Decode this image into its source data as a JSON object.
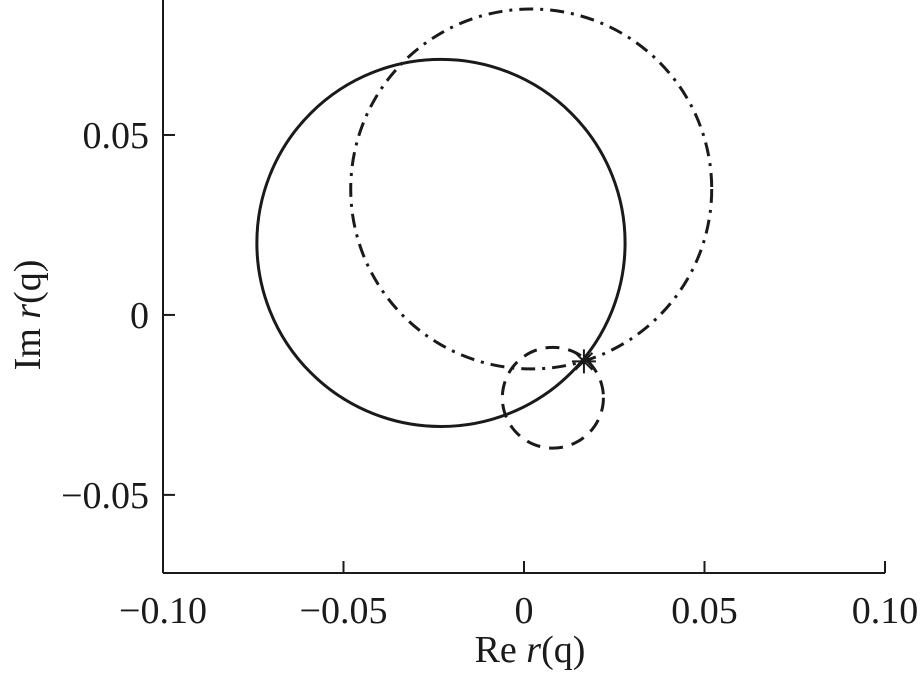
{
  "chart_data": {
    "type": "line",
    "title": "",
    "xlabel_prefix": "Re ",
    "xlabel_var": "r",
    "xlabel_arg": "(q)",
    "ylabel_prefix": "Im ",
    "ylabel_var": "r",
    "ylabel_arg": "(q)",
    "xlim": [
      -0.1,
      0.1
    ],
    "ylim": [
      -0.0717,
      0.0875
    ],
    "xticks": [
      {
        "value": -0.1,
        "label": "−0.10"
      },
      {
        "value": -0.05,
        "label": "−0.05"
      },
      {
        "value": 0,
        "label": "0"
      },
      {
        "value": 0.05,
        "label": "0.05"
      },
      {
        "value": 0.1,
        "label": "0.10"
      }
    ],
    "yticks": [
      {
        "value": 0.05,
        "label": "0.05"
      },
      {
        "value": 0,
        "label": "0"
      },
      {
        "value": -0.05,
        "label": "−0.05"
      }
    ],
    "grid": false,
    "series": [
      {
        "style": "solid",
        "shape": "circle",
        "center": [
          -0.023,
          0.02
        ],
        "radius": 0.051
      },
      {
        "style": "dash-dot",
        "shape": "circle",
        "center": [
          0.002,
          0.035
        ],
        "radius": 0.05
      },
      {
        "style": "dashed",
        "shape": "circle",
        "center": [
          0.008,
          -0.023
        ],
        "radius": 0.014
      }
    ],
    "markers": [
      {
        "symbol": "asterisk",
        "x": 0.0166,
        "y": -0.0129
      }
    ],
    "color": "#1a1a1a"
  }
}
